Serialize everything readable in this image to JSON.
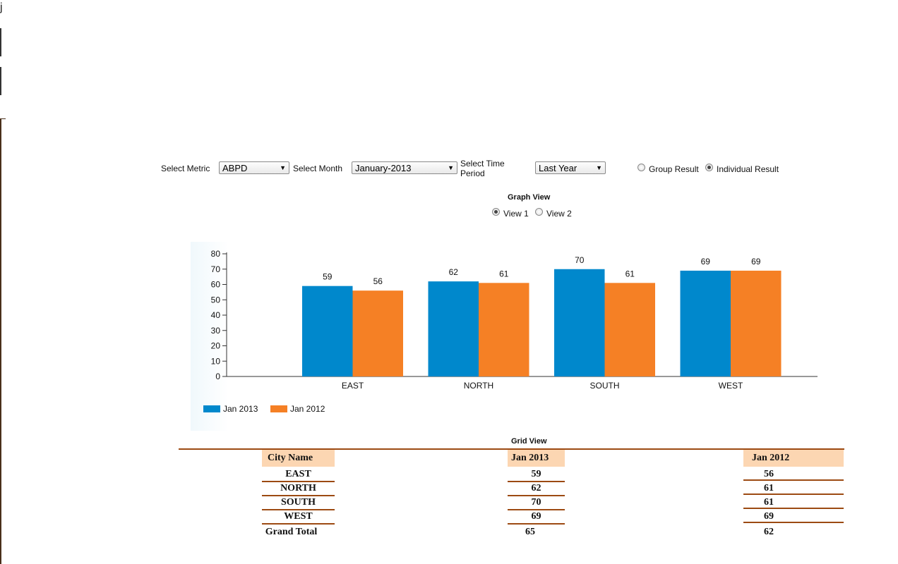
{
  "corner_char": "j",
  "controls": {
    "metric_label": "Select Metric",
    "metric_value": "ABPD",
    "month_label": "Select Month",
    "month_value": "January-2013",
    "time_label_line1": "Select Time",
    "time_label_line2": "Period",
    "time_value": "Last Year",
    "group_result": "Group Result",
    "individual_result": "Individual Result",
    "selected_result": "Individual Result"
  },
  "graph_view": {
    "title": "Graph View",
    "view1": "View 1",
    "view2": "View 2",
    "selected": "View 1"
  },
  "chart_data": {
    "type": "bar",
    "categories": [
      "EAST",
      "NORTH",
      "SOUTH",
      "WEST"
    ],
    "series": [
      {
        "name": "Jan 2013",
        "values": [
          59,
          62,
          70,
          69
        ],
        "color": "#0088cc"
      },
      {
        "name": "Jan 2012",
        "values": [
          56,
          61,
          61,
          69
        ],
        "color": "#f58025"
      }
    ],
    "yticks": [
      0,
      10,
      20,
      30,
      40,
      50,
      60,
      70,
      80
    ],
    "ylim": [
      0,
      80
    ],
    "legend_position": "bottom-left",
    "grid": false
  },
  "grid_view": {
    "title": "Grid View",
    "headers": [
      "City Name",
      "Jan 2013",
      "Jan 2012"
    ],
    "rows": [
      [
        "EAST",
        "59",
        "56"
      ],
      [
        "NORTH",
        "62",
        "61"
      ],
      [
        "SOUTH",
        "70",
        "61"
      ],
      [
        "WEST",
        "69",
        "69"
      ]
    ],
    "total": [
      "Grand Total",
      "65",
      "62"
    ]
  }
}
